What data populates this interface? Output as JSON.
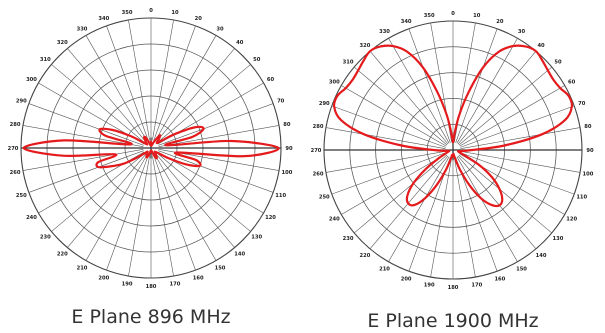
{
  "chart_data": [
    {
      "type": "polar-line",
      "caption": "E Plane 896 MHz",
      "angle_ticks": [
        "0",
        "10",
        "20",
        "30",
        "40",
        "50",
        "60",
        "70",
        "80",
        "90",
        "100",
        "110",
        "120",
        "130",
        "140",
        "150",
        "160",
        "170",
        "180",
        "190",
        "200",
        "210",
        "220",
        "230",
        "240",
        "250",
        "260",
        "270",
        "280",
        "290",
        "300",
        "310",
        "320",
        "330",
        "340",
        "350"
      ],
      "radial_rings": 5,
      "series": [
        {
          "color": "#e41a1c",
          "angles_deg": [
            0,
            5,
            10,
            15,
            20,
            25,
            30,
            35,
            40,
            45,
            50,
            55,
            60,
            65,
            70,
            75,
            80,
            85,
            90,
            95,
            100,
            105,
            110,
            115,
            120,
            125,
            130,
            135,
            140,
            145,
            150,
            155,
            160,
            165,
            170,
            175,
            180,
            185,
            190,
            195,
            200,
            205,
            210,
            215,
            220,
            225,
            230,
            235,
            240,
            245,
            250,
            255,
            260,
            265,
            270,
            275,
            280,
            285,
            290,
            295,
            300,
            305,
            310,
            315,
            320,
            325,
            330,
            335,
            340,
            345,
            350,
            355,
            360
          ],
          "values": [
            0.05,
            0.03,
            0.02,
            0.02,
            0.03,
            0.05,
            0.08,
            0.12,
            0.1,
            0.07,
            0.06,
            0.09,
            0.22,
            0.38,
            0.43,
            0.33,
            0.12,
            0.62,
            0.98,
            0.72,
            0.2,
            0.36,
            0.4,
            0.3,
            0.16,
            0.07,
            0.05,
            0.04,
            0.05,
            0.07,
            0.09,
            0.08,
            0.05,
            0.03,
            0.02,
            0.02,
            0.03,
            0.02,
            0.03,
            0.05,
            0.07,
            0.08,
            0.07,
            0.05,
            0.04,
            0.04,
            0.06,
            0.12,
            0.24,
            0.33,
            0.43,
            0.42,
            0.28,
            0.68,
            0.98,
            0.67,
            0.16,
            0.36,
            0.42,
            0.33,
            0.19,
            0.08,
            0.05,
            0.04,
            0.06,
            0.09,
            0.1,
            0.08,
            0.05,
            0.03,
            0.02,
            0.03,
            0.05
          ]
        }
      ]
    },
    {
      "type": "polar-line",
      "caption": "E Plane 1900 MHz",
      "angle_ticks": [
        "0",
        "10",
        "20",
        "30",
        "40",
        "50",
        "60",
        "70",
        "80",
        "90",
        "100",
        "110",
        "120",
        "130",
        "140",
        "150",
        "160",
        "170",
        "180",
        "190",
        "200",
        "210",
        "220",
        "230",
        "240",
        "250",
        "260",
        "270",
        "280",
        "290",
        "300",
        "310",
        "320",
        "330",
        "340",
        "350"
      ],
      "radial_rings": 5,
      "series": [
        {
          "color": "#e41a1c",
          "angles_deg": [
            0,
            5,
            10,
            15,
            20,
            25,
            30,
            35,
            40,
            45,
            50,
            55,
            60,
            65,
            70,
            75,
            80,
            85,
            90,
            95,
            100,
            105,
            110,
            115,
            120,
            125,
            130,
            135,
            140,
            145,
            150,
            155,
            160,
            165,
            170,
            175,
            180,
            185,
            190,
            195,
            200,
            205,
            210,
            215,
            220,
            225,
            230,
            235,
            240,
            245,
            250,
            255,
            260,
            265,
            270,
            275,
            280,
            285,
            290,
            295,
            300,
            305,
            310,
            315,
            320,
            325,
            330,
            335,
            340,
            345,
            350,
            355,
            360
          ],
          "values": [
            0.06,
            0.12,
            0.27,
            0.46,
            0.68,
            0.84,
            0.93,
            0.98,
            1.0,
            0.98,
            0.96,
            0.95,
            0.96,
            0.99,
            0.98,
            0.9,
            0.7,
            0.4,
            0.15,
            0.08,
            0.05,
            0.04,
            0.05,
            0.1,
            0.24,
            0.37,
            0.47,
            0.54,
            0.56,
            0.52,
            0.43,
            0.3,
            0.17,
            0.08,
            0.04,
            0.03,
            0.05,
            0.04,
            0.04,
            0.08,
            0.17,
            0.3,
            0.43,
            0.52,
            0.54,
            0.5,
            0.4,
            0.26,
            0.13,
            0.06,
            0.04,
            0.03,
            0.04,
            0.07,
            0.15,
            0.4,
            0.7,
            0.9,
            0.98,
            0.99,
            0.96,
            0.95,
            0.96,
            0.98,
            1.0,
            0.98,
            0.93,
            0.84,
            0.68,
            0.46,
            0.27,
            0.12,
            0.06
          ]
        }
      ]
    }
  ]
}
